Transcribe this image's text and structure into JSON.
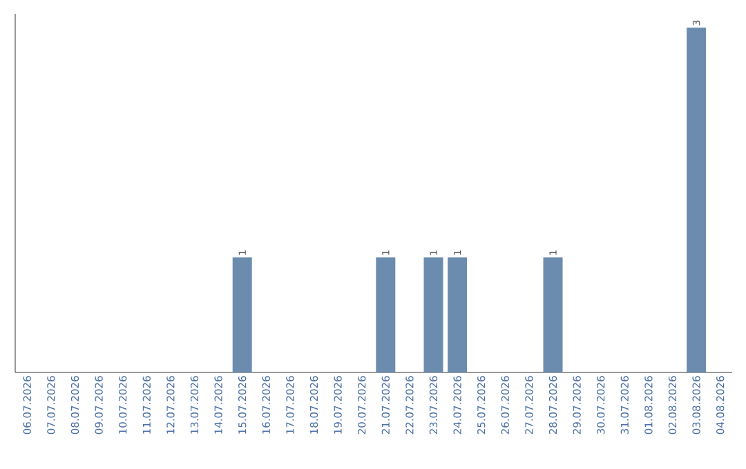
{
  "chart_data": {
    "type": "bar",
    "categories": [
      "06.07.2026",
      "07.07.2026",
      "08.07.2026",
      "09.07.2026",
      "10.07.2026",
      "11.07.2026",
      "12.07.2026",
      "13.07.2026",
      "14.07.2026",
      "15.07.2026",
      "16.07.2026",
      "17.07.2026",
      "18.07.2026",
      "19.07.2026",
      "20.07.2026",
      "21.07.2026",
      "22.07.2026",
      "23.07.2026",
      "24.07.2026",
      "25.07.2026",
      "26.07.2026",
      "27.07.2026",
      "28.07.2026",
      "29.07.2026",
      "30.07.2026",
      "31.07.2026",
      "01.08.2026",
      "02.08.2026",
      "03.08.2026",
      "04.08.2026"
    ],
    "values": [
      0,
      0,
      0,
      0,
      0,
      0,
      0,
      0,
      0,
      1,
      0,
      0,
      0,
      0,
      0,
      1,
      0,
      1,
      1,
      0,
      0,
      0,
      1,
      0,
      0,
      0,
      0,
      0,
      3,
      0
    ],
    "value_labels": [
      null,
      null,
      null,
      null,
      null,
      null,
      null,
      null,
      null,
      "1",
      null,
      null,
      null,
      null,
      null,
      "1",
      null,
      "1",
      "1",
      null,
      null,
      null,
      "1",
      null,
      null,
      null,
      null,
      null,
      "3",
      null
    ],
    "color": "#6b8cae",
    "ylim": [
      0,
      3.12
    ],
    "tick_labels": "x"
  }
}
